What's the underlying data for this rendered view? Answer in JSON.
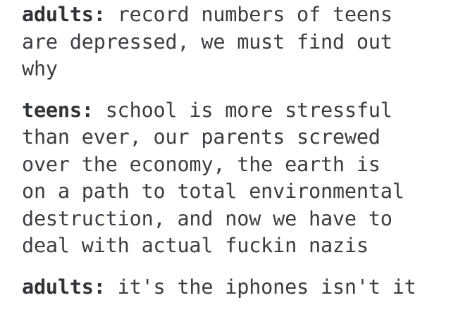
{
  "post": {
    "exchanges": [
      {
        "speaker": "adults:",
        "text": " record numbers of teens\nare depressed, we must find out\nwhy"
      },
      {
        "speaker": "teens:",
        "text": " school is more stressful\nthan ever, our parents screwed\nover the economy, the earth is\non a path to total environmental\ndestruction, and now we have to\ndeal with actual fuckin nazis"
      },
      {
        "speaker": "adults:",
        "text": " it's the iphones isn't it"
      }
    ]
  }
}
